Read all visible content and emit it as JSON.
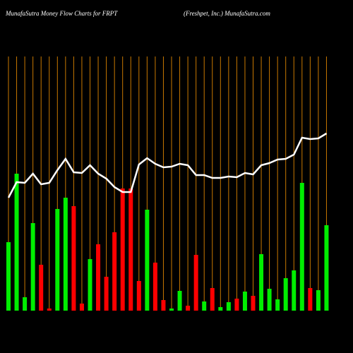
{
  "chart_data": {
    "type": "bar",
    "title": "MunafaSutra  Money Flow  Charts for FRPT",
    "subtitle": "(Freshpet,  Inc.) MunafaSutra.com",
    "ylim": [
      0,
      360
    ],
    "grid_color": "#c87800",
    "series": [
      {
        "name": "Money flow",
        "type": "bar",
        "values": [
          97,
          194,
          19,
          124,
          65,
          3,
          144,
          160,
          148,
          10,
          73,
          94,
          48,
          111,
          173,
          173,
          42,
          143,
          68,
          15,
          3,
          28,
          7,
          79,
          13,
          32,
          5,
          12,
          17,
          27,
          21,
          80,
          31,
          16,
          46,
          57,
          181,
          32,
          29,
          121
        ],
        "colors": [
          "#00ee00",
          "#00ee00",
          "#00ee00",
          "#00ee00",
          "#ff0000",
          "#ff0000",
          "#00ee00",
          "#00ee00",
          "#ff0000",
          "#ff0000",
          "#00ee00",
          "#ff0000",
          "#ff0000",
          "#ff0000",
          "#ff0000",
          "#ff0000",
          "#ff0000",
          "#00ee00",
          "#ff0000",
          "#ff0000",
          "#00ee00",
          "#00ee00",
          "#ff0000",
          "#ff0000",
          "#00ee00",
          "#ff0000",
          "#00ee00",
          "#00ee00",
          "#ff0000",
          "#00ee00",
          "#ff0000",
          "#00ee00",
          "#00ee00",
          "#00ee00",
          "#00ee00",
          "#00ee00",
          "#00ee00",
          "#ff0000",
          "#00ee00",
          "#00ee00"
        ]
      },
      {
        "name": "Price",
        "type": "line",
        "color": "#ffffff",
        "values": [
          160,
          182,
          181,
          194,
          179,
          181,
          199,
          215,
          196,
          195,
          206,
          194,
          187,
          175,
          168,
          168,
          207,
          216,
          208,
          203,
          204,
          208,
          206,
          192,
          192,
          188,
          188,
          190,
          189,
          195,
          193,
          206,
          209,
          214,
          215,
          221,
          245,
          243,
          244,
          251
        ]
      }
    ]
  }
}
